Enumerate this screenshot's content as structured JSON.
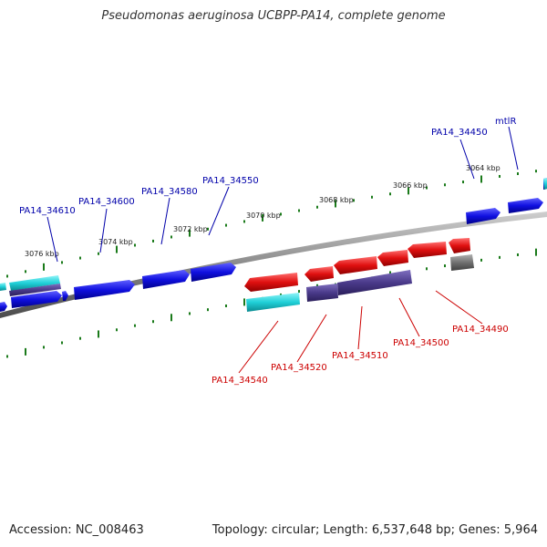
{
  "title": "Pseudomonas aeruginosa UCBPP-PA14, complete genome",
  "footer": {
    "accession": "Accession: NC_008463",
    "summary": "Topology: circular; Length: 6,537,648 bp; Genes: 5,964"
  },
  "kbp_labels": [
    "3064 kbp",
    "3066 kbp",
    "3068 kbp",
    "3070 kbp",
    "3072 kbp",
    "3074 kbp",
    "3076 kbp"
  ],
  "top_gene_labels": [
    "mtlR",
    "PA14_34450",
    "PA14_34550",
    "PA14_34580",
    "PA14_34600",
    "PA14_34610"
  ],
  "bottom_gene_labels": [
    "PA14_34490",
    "PA14_34500",
    "PA14_34510",
    "PA14_34520",
    "PA14_34540"
  ],
  "colors": {
    "forward_gene": "#1010e0",
    "reverse_gene": "#e01010",
    "cyan_feature": "#20d0d8",
    "purple_feature": "#4a3a8a",
    "grey_feature": "#707070",
    "backbone": "#888888",
    "tick": "#1a7a1a"
  }
}
